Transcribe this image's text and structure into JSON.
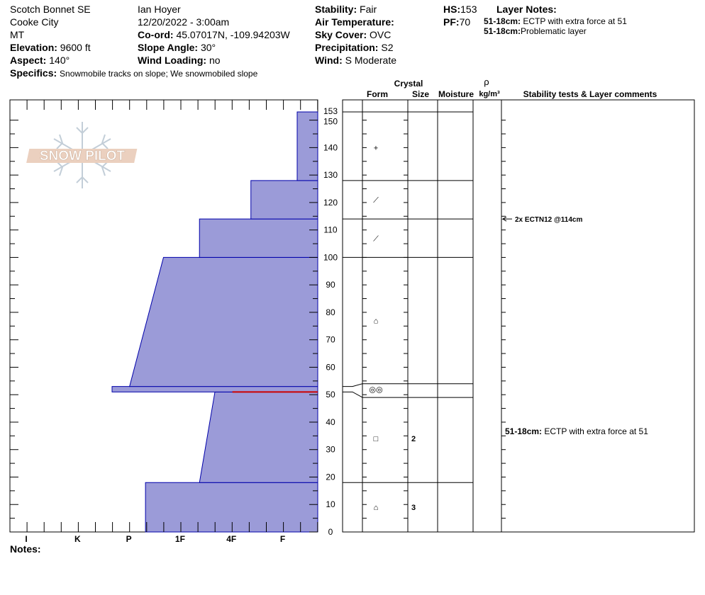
{
  "header": {
    "location": "Scotch Bonnet SE",
    "city": "Cooke City",
    "state": "MT",
    "elevation_label": "Elevation:",
    "elevation_value": "9600 ft",
    "aspect_label": "Aspect:",
    "aspect_value": "140°",
    "specifics_label": "Specifics:",
    "specifics_value": "Snowmobile tracks on slope; We snowmobiled slope",
    "observer": "Ian Hoyer",
    "datetime": "12/20/2022 - 3:00am",
    "coord_label": "Co-ord:",
    "coord_value": "45.07017N, -109.94203W",
    "slope_label": "Slope Angle:",
    "slope_value": "30°",
    "wind_loading_label": "Wind Loading:",
    "wind_loading_value": "no",
    "stability_label": "Stability:",
    "stability_value": "Fair",
    "air_temp_label": "Air Temperature:",
    "air_temp_value": "",
    "sky_label": "Sky Cover:",
    "sky_value": "OVC",
    "precip_label": "Precipitation:",
    "precip_value": "S2",
    "wind_label": "Wind:",
    "wind_value": "S Moderate",
    "hs_label": "HS:",
    "hs_value": "153",
    "pf_label": "PF:",
    "pf_value": "70",
    "layer_notes_label": "Layer Notes:",
    "layer_notes": [
      {
        "depth": "51-18cm:",
        "text": "ECTP with extra force at 51"
      },
      {
        "depth": "51-18cm:",
        "text": "Problematic layer"
      }
    ],
    "notes_label": "Notes:"
  },
  "logo_text": "SNOW PILOT",
  "columns": {
    "crystal": "Crystal",
    "form": "Form",
    "size": "Size",
    "moisture": "Moisture",
    "rho": "ρ",
    "density_unit": "kg/m³",
    "stability": "Stability tests & Layer comments"
  },
  "colors": {
    "layer_fill": "#9b9bd8",
    "layer_stroke": "#0000aa",
    "weak_layer": "#cc0000"
  },
  "chart_data": {
    "type": "area",
    "xlabel": "",
    "ylabel": "",
    "ylim": [
      0,
      153
    ],
    "y_ticks": [
      0,
      10,
      20,
      30,
      40,
      50,
      60,
      70,
      80,
      90,
      100,
      110,
      120,
      130,
      140,
      150,
      153
    ],
    "hardness_scale": [
      "F",
      "4F",
      "1F",
      "P",
      "K",
      "I"
    ],
    "x_ticks": [
      "I",
      "K",
      "P",
      "1F",
      "4F",
      "F"
    ],
    "layers": [
      {
        "bottom": 0,
        "top": 18,
        "hardness_bottom": 3.35,
        "hardness_top": 3.35
      },
      {
        "bottom": 18,
        "top": 51,
        "hardness_bottom": 2.3,
        "hardness_top": 2.0
      },
      {
        "bottom": 51,
        "top": 53,
        "hardness_bottom": 4.0,
        "hardness_top": 4.0
      },
      {
        "bottom": 53,
        "top": 100,
        "hardness_bottom": 3.66,
        "hardness_top": 3.0
      },
      {
        "bottom": 100,
        "top": 114,
        "hardness_bottom": 2.3,
        "hardness_top": 2.3
      },
      {
        "bottom": 114,
        "top": 128,
        "hardness_bottom": 1.3,
        "hardness_top": 1.3
      },
      {
        "bottom": 128,
        "top": 153,
        "hardness_bottom": 0.4,
        "hardness_top": 0.4
      }
    ],
    "weak_layer_depth": 51,
    "layer_boundaries": [
      18,
      49,
      54,
      100,
      114,
      128,
      153
    ],
    "grains": [
      {
        "depth": 140,
        "symbol": "+",
        "size": ""
      },
      {
        "depth": 121,
        "symbol": "⟋",
        "size": ""
      },
      {
        "depth": 107,
        "symbol": "⟋",
        "size": ""
      },
      {
        "depth": 77,
        "symbol": "⌂",
        "size": ""
      },
      {
        "depth": 52,
        "symbol": "◎◎",
        "size": ""
      },
      {
        "depth": 34,
        "symbol": "□",
        "size": "2"
      },
      {
        "depth": 9,
        "symbol": "⌂",
        "size": "3"
      }
    ],
    "tests": [
      {
        "depth": 114,
        "text": "2x ECTN12 @114cm"
      }
    ],
    "comments": [
      {
        "depth": 34,
        "depth_label": "51-18cm:",
        "text": "ECTP with extra force at 51"
      }
    ]
  }
}
